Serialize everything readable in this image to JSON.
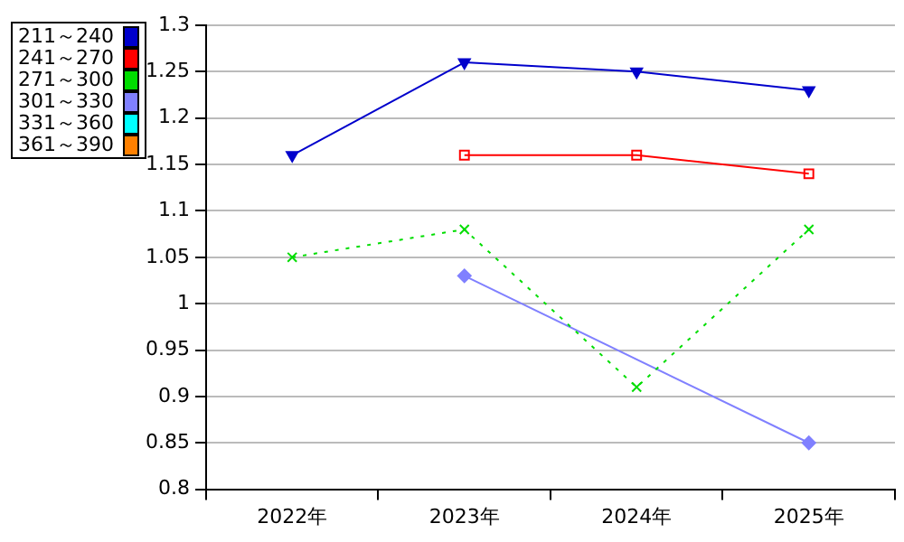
{
  "chart_data": {
    "type": "line",
    "categories": [
      "2022年",
      "2023年",
      "2024年",
      "2025年"
    ],
    "series": [
      {
        "name": "211～240",
        "color": "#0000cc",
        "marker": "triangle",
        "values": [
          1.16,
          1.26,
          1.25,
          1.23
        ]
      },
      {
        "name": "241～270",
        "color": "#ff0000",
        "marker": "square",
        "values": [
          null,
          1.16,
          1.16,
          1.14
        ]
      },
      {
        "name": "271～300",
        "color": "#00dd00",
        "marker": "cross",
        "line_style": "dotted",
        "values": [
          1.05,
          1.08,
          0.91,
          1.08
        ]
      },
      {
        "name": "301～330",
        "color": "#8080ff",
        "marker": "diamond",
        "values": [
          null,
          1.03,
          null,
          0.85
        ]
      },
      {
        "name": "331～360",
        "color": "#00ffff",
        "values": [
          null,
          null,
          null,
          null
        ]
      },
      {
        "name": "361～390",
        "color": "#ff8000",
        "values": [
          null,
          null,
          null,
          null
        ]
      }
    ],
    "ylim": [
      0.8,
      1.3
    ],
    "yticks": [
      0.8,
      0.85,
      0.9,
      0.95,
      1,
      1.05,
      1.1,
      1.15,
      1.2,
      1.25,
      1.3
    ],
    "grid": "y",
    "legend": "top left"
  }
}
